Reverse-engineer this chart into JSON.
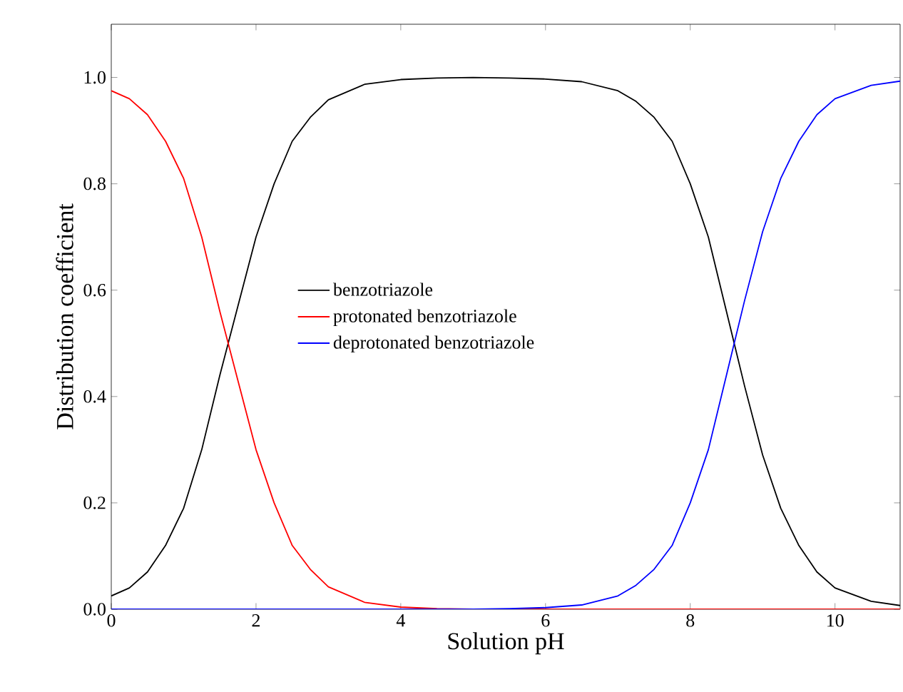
{
  "chart_data": {
    "type": "line",
    "xlabel": "Solution pH",
    "ylabel": "Distribution coefficient",
    "x": [
      0,
      0.25,
      0.5,
      0.75,
      1,
      1.25,
      1.5,
      1.75,
      2,
      2.25,
      2.5,
      2.75,
      3,
      3.5,
      4,
      4.5,
      5,
      5.5,
      6,
      6.5,
      7,
      7.25,
      7.5,
      7.75,
      8,
      8.25,
      8.5,
      8.75,
      9,
      9.25,
      9.5,
      9.75,
      10,
      10.5,
      10.9
    ],
    "series": [
      {
        "name": "benzotriazole",
        "color": "#000000",
        "values": [
          0.025,
          0.04,
          0.07,
          0.12,
          0.19,
          0.3,
          0.44,
          0.57,
          0.7,
          0.8,
          0.88,
          0.925,
          0.958,
          0.987,
          0.996,
          0.999,
          1.0,
          0.999,
          0.997,
          0.992,
          0.975,
          0.955,
          0.925,
          0.88,
          0.8,
          0.7,
          0.56,
          0.42,
          0.29,
          0.19,
          0.12,
          0.07,
          0.04,
          0.015,
          0.007
        ]
      },
      {
        "name": "protonated benzotriazole",
        "color": "#ff0000",
        "values": [
          0.975,
          0.96,
          0.93,
          0.88,
          0.81,
          0.7,
          0.56,
          0.43,
          0.3,
          0.2,
          0.12,
          0.075,
          0.042,
          0.013,
          0.004,
          0.001,
          0,
          0,
          0,
          0,
          0,
          0,
          0,
          0,
          0,
          0,
          0,
          0,
          0,
          0,
          0,
          0,
          0,
          0,
          0
        ]
      },
      {
        "name": "deprotonated benzotriazole",
        "color": "#0000ff",
        "values": [
          0,
          0,
          0,
          0,
          0,
          0,
          0,
          0,
          0,
          0,
          0,
          0,
          0,
          0,
          0,
          0,
          0,
          0.001,
          0.003,
          0.008,
          0.025,
          0.045,
          0.075,
          0.12,
          0.2,
          0.3,
          0.44,
          0.58,
          0.71,
          0.81,
          0.88,
          0.93,
          0.96,
          0.985,
          0.993
        ]
      }
    ],
    "xlim": [
      0,
      10.9
    ],
    "ylim": [
      0,
      1.1
    ],
    "xticks": [
      0,
      2,
      4,
      6,
      8,
      10
    ],
    "yticks": [
      {
        "value": 0,
        "label": "0.0"
      },
      {
        "value": 0.2,
        "label": "0.2"
      },
      {
        "value": 0.4,
        "label": "0.4"
      },
      {
        "value": 0.6,
        "label": "0.6"
      },
      {
        "value": 0.8,
        "label": "0.8"
      },
      {
        "value": 1.0,
        "label": "1.0"
      }
    ],
    "legend": "center",
    "grid": false,
    "marker": "none",
    "line_style": "solid"
  }
}
